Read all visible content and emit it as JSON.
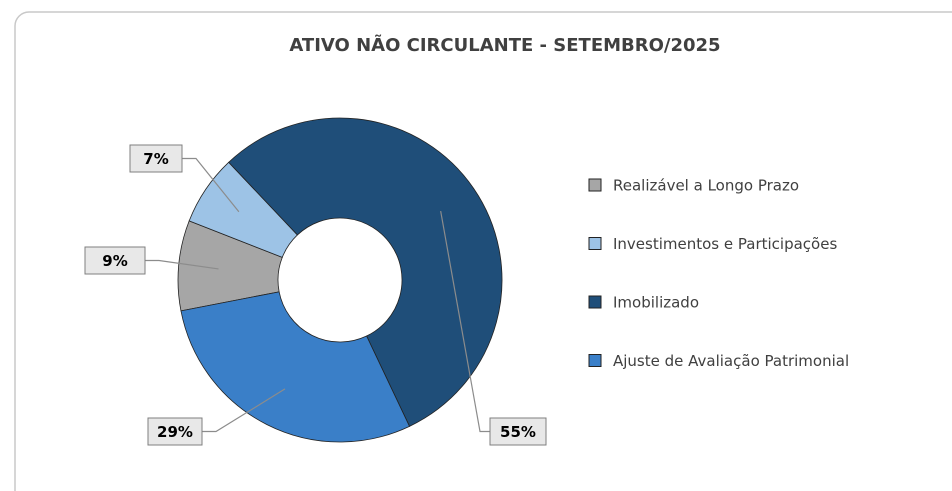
{
  "chart_data": {
    "type": "donut",
    "title": "ATIVO NÃO CIRCULANTE - SETEMBRO/2025",
    "categories": [
      "Realizável a Longo Prazo",
      "Investimentos e Participações",
      "Imobilizado",
      "Ajuste de Avaliação Patrimonial"
    ],
    "values": [
      9,
      7,
      55,
      29
    ],
    "value_labels": [
      "9%",
      "7%",
      "55%",
      "29%"
    ],
    "colors": [
      "#a6a6a6",
      "#9dc3e6",
      "#1f4e79",
      "#3a7fc8"
    ],
    "legend": "right"
  }
}
